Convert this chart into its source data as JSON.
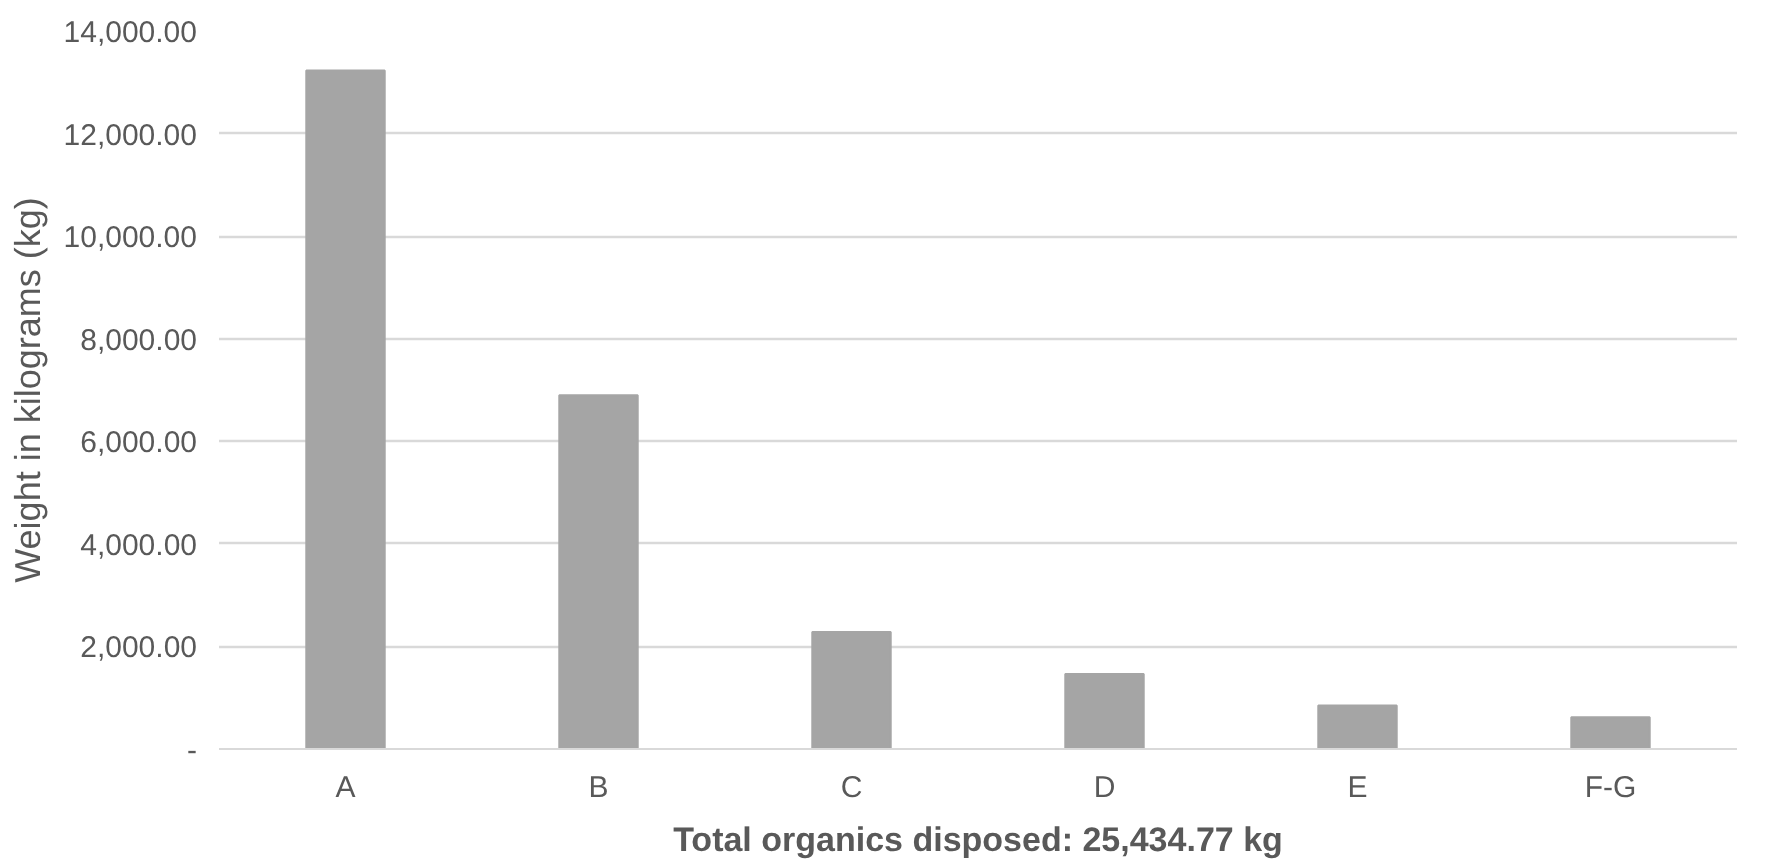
{
  "chart_data": {
    "type": "bar",
    "xlabel": "Total organics disposed: 25,434.77 kg",
    "ylabel": "Weight in kilograms (kg)",
    "categories": [
      "A",
      "B",
      "C",
      "D",
      "E",
      "F-G"
    ],
    "values": [
      13230,
      6900,
      2280,
      1460,
      850,
      620
    ],
    "color": "#a5a5a5",
    "ylim": [
      0,
      14000
    ],
    "yticks": [
      {
        "value": 0,
        "label": "-"
      },
      {
        "value": 2000,
        "label": "2,000.00"
      },
      {
        "value": 4000,
        "label": "4,000.00"
      },
      {
        "value": 6000,
        "label": "6,000.00"
      },
      {
        "value": 8000,
        "label": "8,000.00"
      },
      {
        "value": 10000,
        "label": "10,000.00"
      },
      {
        "value": 12000,
        "label": "12,000.00"
      },
      {
        "value": 14000,
        "label": "14,000.00"
      }
    ],
    "grid": "y"
  }
}
